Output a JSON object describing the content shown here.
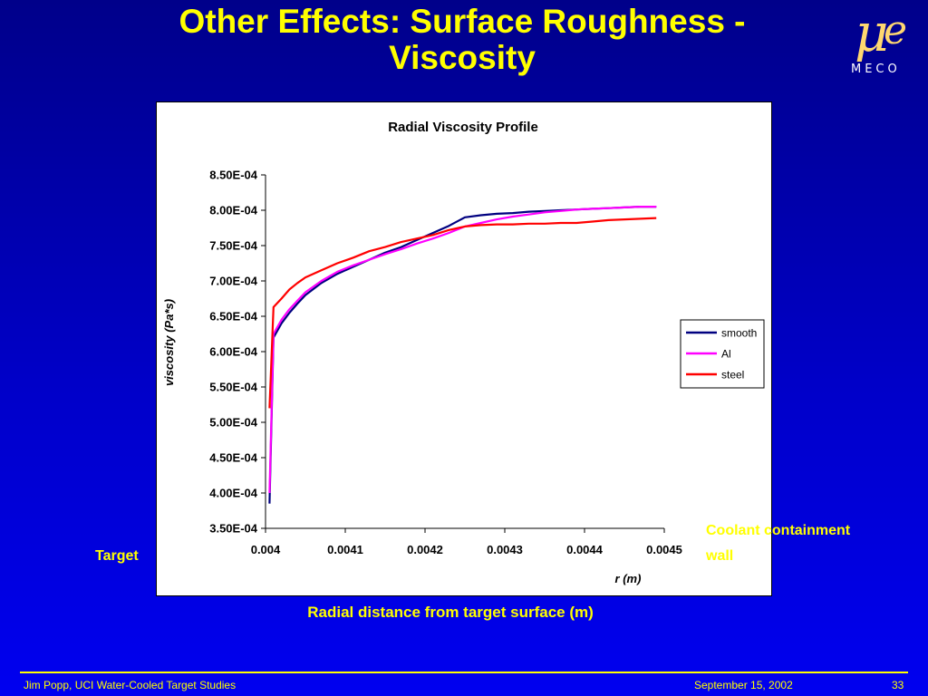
{
  "slide": {
    "title_line1": "Other Effects: Surface Roughness -",
    "title_line2": "Viscosity",
    "logo_text": "MECO",
    "target_label": "Target",
    "coolant_label_line1": "Coolant containment",
    "coolant_label_line2": "wall",
    "x_caption": "Radial distance from target surface (m)",
    "footer_left": "Jim Popp, UCI  Water-Cooled Target Studies",
    "footer_date": "September 15, 2002",
    "footer_page": "33"
  },
  "colors": {
    "background": "#0000c8",
    "accent_text": "#ffff00",
    "smooth": "#000080",
    "Al": "#ff00ff",
    "steel": "#ff0000"
  },
  "chart_data": {
    "type": "line",
    "title": "Radial Viscosity Profile",
    "xlabel": "r (m)",
    "ylabel": "viscosity (Pa*s)",
    "xlim": [
      0.004,
      0.0045
    ],
    "ylim": [
      0.00035,
      0.00085
    ],
    "x_ticks": [
      "0.004",
      "0.0041",
      "0.0042",
      "0.0043",
      "0.0044",
      "0.0045"
    ],
    "y_ticks": [
      "3.50E-04",
      "4.00E-04",
      "4.50E-04",
      "5.00E-04",
      "5.50E-04",
      "6.00E-04",
      "6.50E-04",
      "7.00E-04",
      "7.50E-04",
      "8.00E-04",
      "8.50E-04"
    ],
    "grid": false,
    "legend_position": "right",
    "series": [
      {
        "name": "smooth",
        "x": [
          0.004005,
          0.00401,
          0.00402,
          0.00403,
          0.00404,
          0.00405,
          0.00407,
          0.00409,
          0.00411,
          0.00413,
          0.00415,
          0.00417,
          0.00419,
          0.00421,
          0.00423,
          0.00425,
          0.00427,
          0.00429,
          0.00431,
          0.00433,
          0.00435,
          0.00437,
          0.00439,
          0.00441,
          0.00443,
          0.00445,
          0.00447,
          0.00449
        ],
        "y": [
          0.000385,
          0.00062,
          0.00064,
          0.000655,
          0.000668,
          0.00068,
          0.000697,
          0.00071,
          0.00072,
          0.00073,
          0.00074,
          0.000748,
          0.000758,
          0.000768,
          0.000778,
          0.00079,
          0.000793,
          0.000795,
          0.000796,
          0.000798,
          0.000799,
          0.0008,
          0.000801,
          0.000802,
          0.000803,
          0.000804,
          0.000805,
          0.000805
        ]
      },
      {
        "name": "Al",
        "x": [
          0.004005,
          0.00401,
          0.00402,
          0.00403,
          0.00404,
          0.00405,
          0.00407,
          0.00409,
          0.00411,
          0.00413,
          0.00415,
          0.00417,
          0.00419,
          0.00421,
          0.00423,
          0.00425,
          0.00427,
          0.00429,
          0.00431,
          0.00433,
          0.00435,
          0.00437,
          0.00439,
          0.00441,
          0.00443,
          0.00445,
          0.00447,
          0.00449
        ],
        "y": [
          0.0004,
          0.000625,
          0.000645,
          0.00066,
          0.000672,
          0.000684,
          0.0007,
          0.000713,
          0.000722,
          0.00073,
          0.000738,
          0.000745,
          0.000753,
          0.00076,
          0.000768,
          0.000777,
          0.000782,
          0.000787,
          0.000791,
          0.000794,
          0.000797,
          0.000799,
          0.000801,
          0.000802,
          0.000803,
          0.000804,
          0.000805,
          0.000805
        ]
      },
      {
        "name": "steel",
        "x": [
          0.004005,
          0.00401,
          0.00402,
          0.00403,
          0.00404,
          0.00405,
          0.00407,
          0.00409,
          0.00411,
          0.00413,
          0.00415,
          0.00417,
          0.00419,
          0.00421,
          0.00423,
          0.00425,
          0.00427,
          0.00429,
          0.00431,
          0.00433,
          0.00435,
          0.00437,
          0.00439,
          0.00441,
          0.00443,
          0.00445,
          0.00447,
          0.00449
        ],
        "y": [
          0.00052,
          0.000663,
          0.000675,
          0.000688,
          0.000697,
          0.000705,
          0.000715,
          0.000725,
          0.000733,
          0.000742,
          0.000748,
          0.000755,
          0.00076,
          0.000765,
          0.000772,
          0.000777,
          0.000779,
          0.00078,
          0.00078,
          0.000781,
          0.000781,
          0.000782,
          0.000782,
          0.000784,
          0.000786,
          0.000787,
          0.000788,
          0.000789
        ]
      }
    ]
  }
}
